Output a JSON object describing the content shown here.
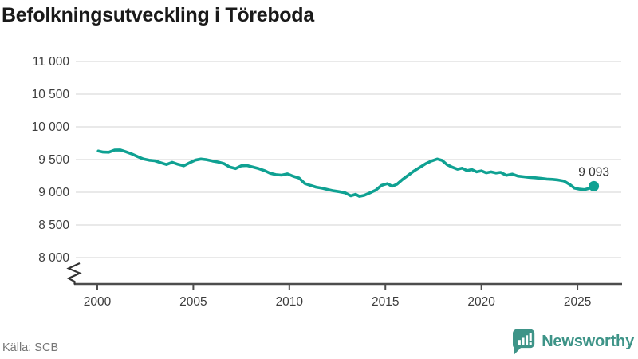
{
  "title": "Befolkningsutveckling i Töreboda",
  "source": {
    "label": "Källa: SCB"
  },
  "branding": {
    "name": "Newsworthy"
  },
  "colors": {
    "line": "#0fa192",
    "grid": "#e2e2e2",
    "axis": "#4d4d4d",
    "tick_text": "#3d3d3d",
    "title_text": "#1a1a1a",
    "source_text": "#767676",
    "brand": "#3e9488",
    "end_label_text": "#333333",
    "background": "#ffffff"
  },
  "chart_data": {
    "type": "line",
    "title": "Befolkningsutveckling i Töreboda",
    "xlabel": "",
    "ylabel": "",
    "grid": "horizontal",
    "legend": "none",
    "axis_break_at_bottom": true,
    "xlim": [
      1998.88,
      2027.28
    ],
    "ylim": [
      8000,
      11000
    ],
    "x_ticks": [
      2000,
      2005,
      2010,
      2015,
      2020,
      2025
    ],
    "y_ticks": [
      {
        "value": 8000,
        "label": "8 000"
      },
      {
        "value": 8500,
        "label": "8 500"
      },
      {
        "value": 9000,
        "label": "9 000"
      },
      {
        "value": 9500,
        "label": "9 500"
      },
      {
        "value": 10000,
        "label": "10 000"
      },
      {
        "value": 10500,
        "label": "10 500"
      },
      {
        "value": 11000,
        "label": "11 000"
      }
    ],
    "end_label": "9 093",
    "end_value": 9093,
    "series": [
      {
        "name": "Befolkning i Töreboda",
        "points": [
          [
            2000.05,
            9630
          ],
          [
            2000.3,
            9615
          ],
          [
            2000.6,
            9612
          ],
          [
            2000.9,
            9645
          ],
          [
            2001.2,
            9648
          ],
          [
            2001.5,
            9618
          ],
          [
            2001.8,
            9585
          ],
          [
            2002.1,
            9545
          ],
          [
            2002.4,
            9508
          ],
          [
            2002.7,
            9490
          ],
          [
            2003.0,
            9482
          ],
          [
            2003.3,
            9452
          ],
          [
            2003.6,
            9425
          ],
          [
            2003.9,
            9458
          ],
          [
            2004.2,
            9428
          ],
          [
            2004.5,
            9405
          ],
          [
            2004.8,
            9450
          ],
          [
            2005.1,
            9492
          ],
          [
            2005.4,
            9508
          ],
          [
            2005.7,
            9498
          ],
          [
            2006.0,
            9478
          ],
          [
            2006.3,
            9462
          ],
          [
            2006.6,
            9438
          ],
          [
            2006.9,
            9385
          ],
          [
            2007.2,
            9362
          ],
          [
            2007.5,
            9405
          ],
          [
            2007.8,
            9408
          ],
          [
            2008.1,
            9385
          ],
          [
            2008.4,
            9362
          ],
          [
            2008.7,
            9332
          ],
          [
            2009.0,
            9292
          ],
          [
            2009.3,
            9270
          ],
          [
            2009.6,
            9262
          ],
          [
            2009.9,
            9282
          ],
          [
            2010.2,
            9245
          ],
          [
            2010.5,
            9218
          ],
          [
            2010.8,
            9135
          ],
          [
            2011.1,
            9105
          ],
          [
            2011.4,
            9078
          ],
          [
            2011.7,
            9062
          ],
          [
            2012.0,
            9042
          ],
          [
            2012.3,
            9022
          ],
          [
            2012.6,
            9008
          ],
          [
            2012.9,
            8992
          ],
          [
            2013.2,
            8945
          ],
          [
            2013.45,
            8968
          ],
          [
            2013.65,
            8938
          ],
          [
            2013.9,
            8952
          ],
          [
            2014.2,
            8992
          ],
          [
            2014.5,
            9032
          ],
          [
            2014.8,
            9105
          ],
          [
            2015.1,
            9132
          ],
          [
            2015.35,
            9092
          ],
          [
            2015.6,
            9122
          ],
          [
            2015.9,
            9198
          ],
          [
            2016.2,
            9262
          ],
          [
            2016.5,
            9328
          ],
          [
            2016.8,
            9382
          ],
          [
            2017.1,
            9438
          ],
          [
            2017.4,
            9478
          ],
          [
            2017.7,
            9508
          ],
          [
            2017.95,
            9488
          ],
          [
            2018.2,
            9425
          ],
          [
            2018.5,
            9382
          ],
          [
            2018.75,
            9352
          ],
          [
            2019.0,
            9368
          ],
          [
            2019.25,
            9330
          ],
          [
            2019.5,
            9348
          ],
          [
            2019.75,
            9312
          ],
          [
            2020.0,
            9328
          ],
          [
            2020.25,
            9298
          ],
          [
            2020.5,
            9312
          ],
          [
            2020.75,
            9295
          ],
          [
            2021.0,
            9305
          ],
          [
            2021.3,
            9258
          ],
          [
            2021.6,
            9278
          ],
          [
            2021.9,
            9248
          ],
          [
            2022.2,
            9238
          ],
          [
            2022.5,
            9228
          ],
          [
            2022.8,
            9222
          ],
          [
            2023.1,
            9212
          ],
          [
            2023.4,
            9202
          ],
          [
            2023.7,
            9198
          ],
          [
            2024.0,
            9188
          ],
          [
            2024.3,
            9172
          ],
          [
            2024.6,
            9118
          ],
          [
            2024.85,
            9062
          ],
          [
            2025.1,
            9048
          ],
          [
            2025.35,
            9040
          ],
          [
            2025.6,
            9058
          ],
          [
            2025.85,
            9093
          ]
        ]
      }
    ]
  }
}
